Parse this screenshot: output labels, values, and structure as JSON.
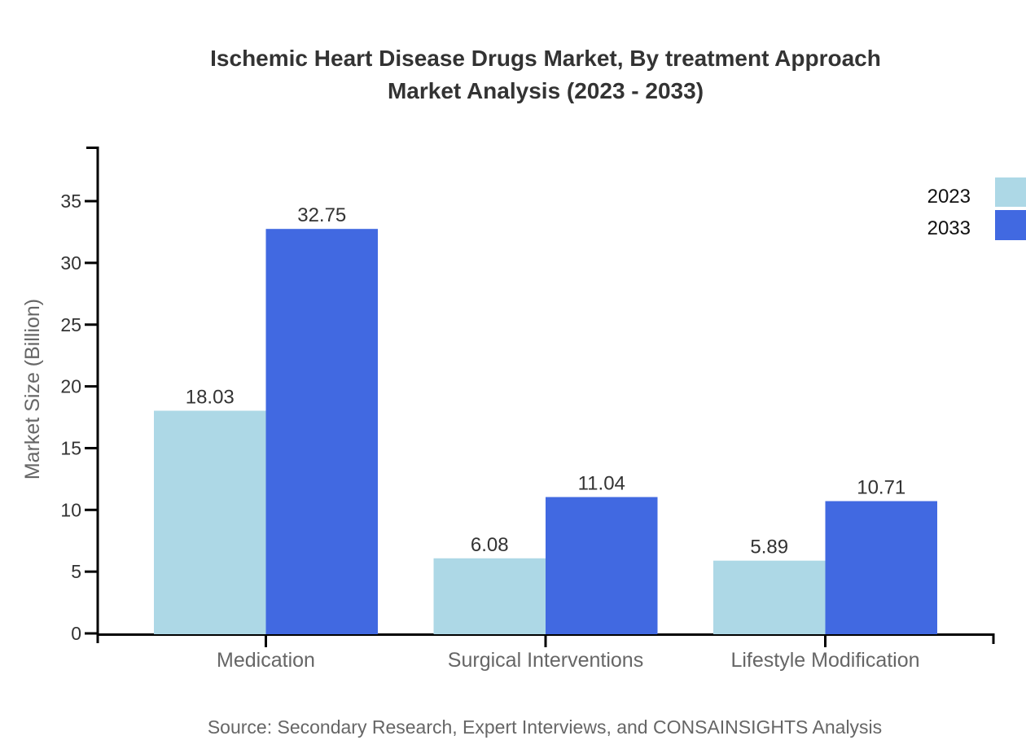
{
  "chart_data": {
    "type": "bar",
    "title_lines": [
      "Ischemic Heart Disease Drugs Market, By treatment Approach",
      "Market Analysis (2023 - 2033)"
    ],
    "categories": [
      "Medication",
      "Surgical Interventions",
      "Lifestyle Modification"
    ],
    "series": [
      {
        "name": "2023",
        "color": "#ADD8E6",
        "values": [
          18.03,
          6.08,
          5.89
        ]
      },
      {
        "name": "2033",
        "color": "#4169E1",
        "values": [
          32.75,
          11.04,
          10.71
        ]
      }
    ],
    "xlabel": "",
    "ylabel": "Market Size (Billion)",
    "yticks": [
      0,
      5,
      10,
      15,
      20,
      25,
      30,
      35
    ],
    "ylim": [
      0,
      39.4
    ],
    "grid": false,
    "legend_position": "top-right",
    "value_labels": true,
    "source_note": "Source: Secondary Research, Expert Interviews, and CONSAINSIGHTS Analysis"
  },
  "colors": {
    "background": "#ffffff",
    "axis_line": "#000000",
    "title_text": "#333333",
    "tick_label": "#333333",
    "value_label": "#333333",
    "category_label": "#666666",
    "axis_title": "#666666",
    "source_text": "#666666",
    "legend_label": "#111111",
    "series_2023": "#ADD8E6",
    "series_2033": "#4169E1"
  }
}
